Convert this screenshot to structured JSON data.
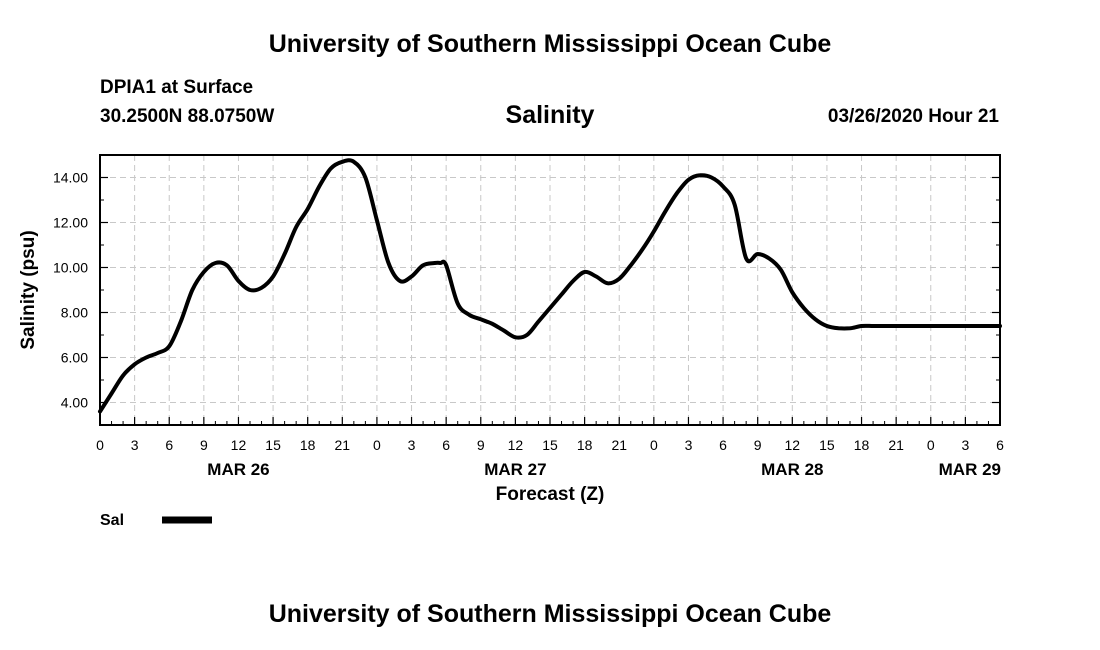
{
  "header": {
    "title": "University of Southern Mississippi Ocean Cube",
    "station": "DPIA1 at Surface",
    "coords": "30.2500N 88.0750W",
    "variable": "Salinity",
    "run_time": "03/26/2020 Hour 21"
  },
  "footer": {
    "title": "University of Southern Mississippi Ocean Cube"
  },
  "legend": {
    "label": "Sal"
  },
  "chart_data": {
    "type": "line",
    "title": "Salinity",
    "xlabel": "Forecast (Z)",
    "ylabel": "Salinity (psu)",
    "xlim": [
      0,
      78
    ],
    "ylim": [
      3.0,
      15.0
    ],
    "grid": true,
    "y_ticks": [
      "4.00",
      "6.00",
      "8.00",
      "10.00",
      "12.00",
      "14.00"
    ],
    "x_ticks": [
      "0",
      "3",
      "6",
      "9",
      "12",
      "15",
      "18",
      "21",
      "0",
      "3",
      "6",
      "9",
      "12",
      "15",
      "18",
      "21",
      "0",
      "3",
      "6",
      "9",
      "12",
      "15",
      "18",
      "21",
      "0",
      "3",
      "6"
    ],
    "day_labels": [
      "MAR 26",
      "MAR 27",
      "MAR 28",
      "MAR 29"
    ],
    "day_label_hours": [
      12,
      36,
      60,
      78
    ],
    "series": [
      {
        "name": "Sal",
        "color": "#000000",
        "x": [
          0,
          1,
          2,
          3,
          4,
          5,
          6,
          7,
          8,
          9,
          10,
          11,
          12,
          13,
          14,
          15,
          16,
          17,
          18,
          19,
          20,
          21,
          22,
          23,
          24,
          25,
          26,
          27,
          28,
          29,
          29.5,
          30,
          31,
          32,
          33,
          33.5,
          34,
          35,
          36,
          37,
          38,
          39,
          40,
          41,
          42,
          43,
          44,
          45,
          46,
          47,
          48,
          49,
          50,
          51,
          52,
          53,
          54,
          55,
          56,
          57,
          58,
          59,
          60,
          61,
          62,
          63,
          64,
          65,
          66,
          67,
          68,
          69,
          70,
          71,
          72,
          73,
          74,
          75,
          76,
          77,
          78
        ],
        "values": [
          3.6,
          4.4,
          5.2,
          5.7,
          6.0,
          6.2,
          6.5,
          7.6,
          9.0,
          9.8,
          10.2,
          10.1,
          9.4,
          9.0,
          9.1,
          9.6,
          10.6,
          11.8,
          12.6,
          13.6,
          14.4,
          14.7,
          14.7,
          14.0,
          12.1,
          10.2,
          9.4,
          9.6,
          10.1,
          10.2,
          10.2,
          10.1,
          8.4,
          7.9,
          7.7,
          7.6,
          7.5,
          7.2,
          6.9,
          7.0,
          7.6,
          8.2,
          8.8,
          9.4,
          9.8,
          9.6,
          9.3,
          9.5,
          10.1,
          10.8,
          11.6,
          12.5,
          13.3,
          13.9,
          14.1,
          14.0,
          13.6,
          12.8,
          10.4,
          10.6,
          10.4,
          9.9,
          8.9,
          8.2,
          7.7,
          7.4,
          7.3,
          7.3,
          7.4,
          7.4,
          7.4,
          7.4,
          7.4,
          7.4,
          7.4,
          7.4,
          7.4,
          7.4,
          7.4,
          7.4,
          7.4
        ]
      }
    ]
  }
}
